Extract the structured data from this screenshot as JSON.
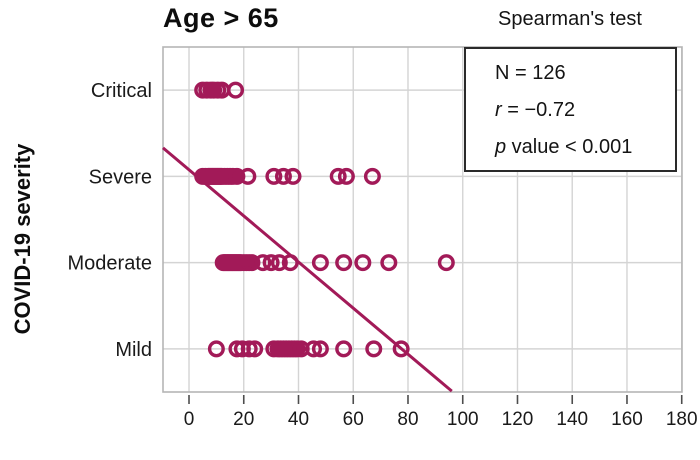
{
  "figure": {
    "title": "Age > 65",
    "y_axis_label": "COVID-19 severity"
  },
  "stats": {
    "heading": "Spearman's test",
    "lines": [
      {
        "name": "stat-n",
        "segments": [
          {
            "text": "N = 126",
            "italic": false
          }
        ]
      },
      {
        "name": "stat-r",
        "segments": [
          {
            "text": "r",
            "italic": true
          },
          {
            "text": " = −0.72",
            "italic": false
          }
        ]
      },
      {
        "name": "stat-p",
        "segments": [
          {
            "text": "p",
            "italic": true
          },
          {
            "text": " value < 0.001",
            "italic": false
          }
        ]
      }
    ]
  },
  "colors": {
    "accent": "#a21a58",
    "grid": "#d4d4d4",
    "frame": "#b5b5b5",
    "tick": "#4d4d4d",
    "text": "#1a1a1a"
  },
  "chart_data": {
    "type": "scatter",
    "title": "Age > 65",
    "xlabel": "",
    "ylabel": "COVID-19 severity",
    "categories": [
      "Critical",
      "Severe",
      "Moderate",
      "Mild"
    ],
    "x_ticks": [
      0,
      20,
      40,
      60,
      80,
      100,
      120,
      140,
      160,
      180
    ],
    "xlim": [
      -9.5,
      180.1
    ],
    "grid": true,
    "annotation": {
      "n": 126,
      "r": -0.72,
      "p": "< 0.001",
      "test": "Spearman's test"
    },
    "series": [
      {
        "name": "Critical",
        "x": [
          5,
          6.5,
          8,
          9,
          10.5,
          12,
          17
        ]
      },
      {
        "name": "Severe",
        "x": [
          5,
          6,
          7,
          7.5,
          8,
          8.5,
          9,
          9.5,
          10,
          10.5,
          11,
          11.5,
          12,
          13,
          14,
          15,
          16,
          17.5,
          21.5,
          31,
          34.5,
          38,
          54.5,
          57.5,
          67
        ]
      },
      {
        "name": "Moderate",
        "x": [
          12.5,
          13,
          13.5,
          14,
          14.5,
          15,
          15.5,
          16,
          16.5,
          17,
          17.5,
          18,
          18.5,
          19,
          20,
          21,
          22,
          23,
          27,
          30,
          33,
          37,
          48,
          56.5,
          63.5,
          73,
          94
        ]
      },
      {
        "name": "Mild",
        "x": [
          10,
          17.5,
          19.5,
          22,
          24,
          31,
          32.5,
          33.5,
          34.5,
          35.5,
          36.5,
          37.5,
          38.5,
          39.5,
          41,
          45.5,
          48,
          56.5,
          67.5,
          77.5
        ]
      }
    ],
    "trend_line": {
      "x1": -9.5,
      "row1": 0.67,
      "x2": 96,
      "row2": 3.49
    },
    "point_style": {
      "radius": 6.8,
      "stroke_width": 3.4,
      "fill": "none"
    }
  }
}
